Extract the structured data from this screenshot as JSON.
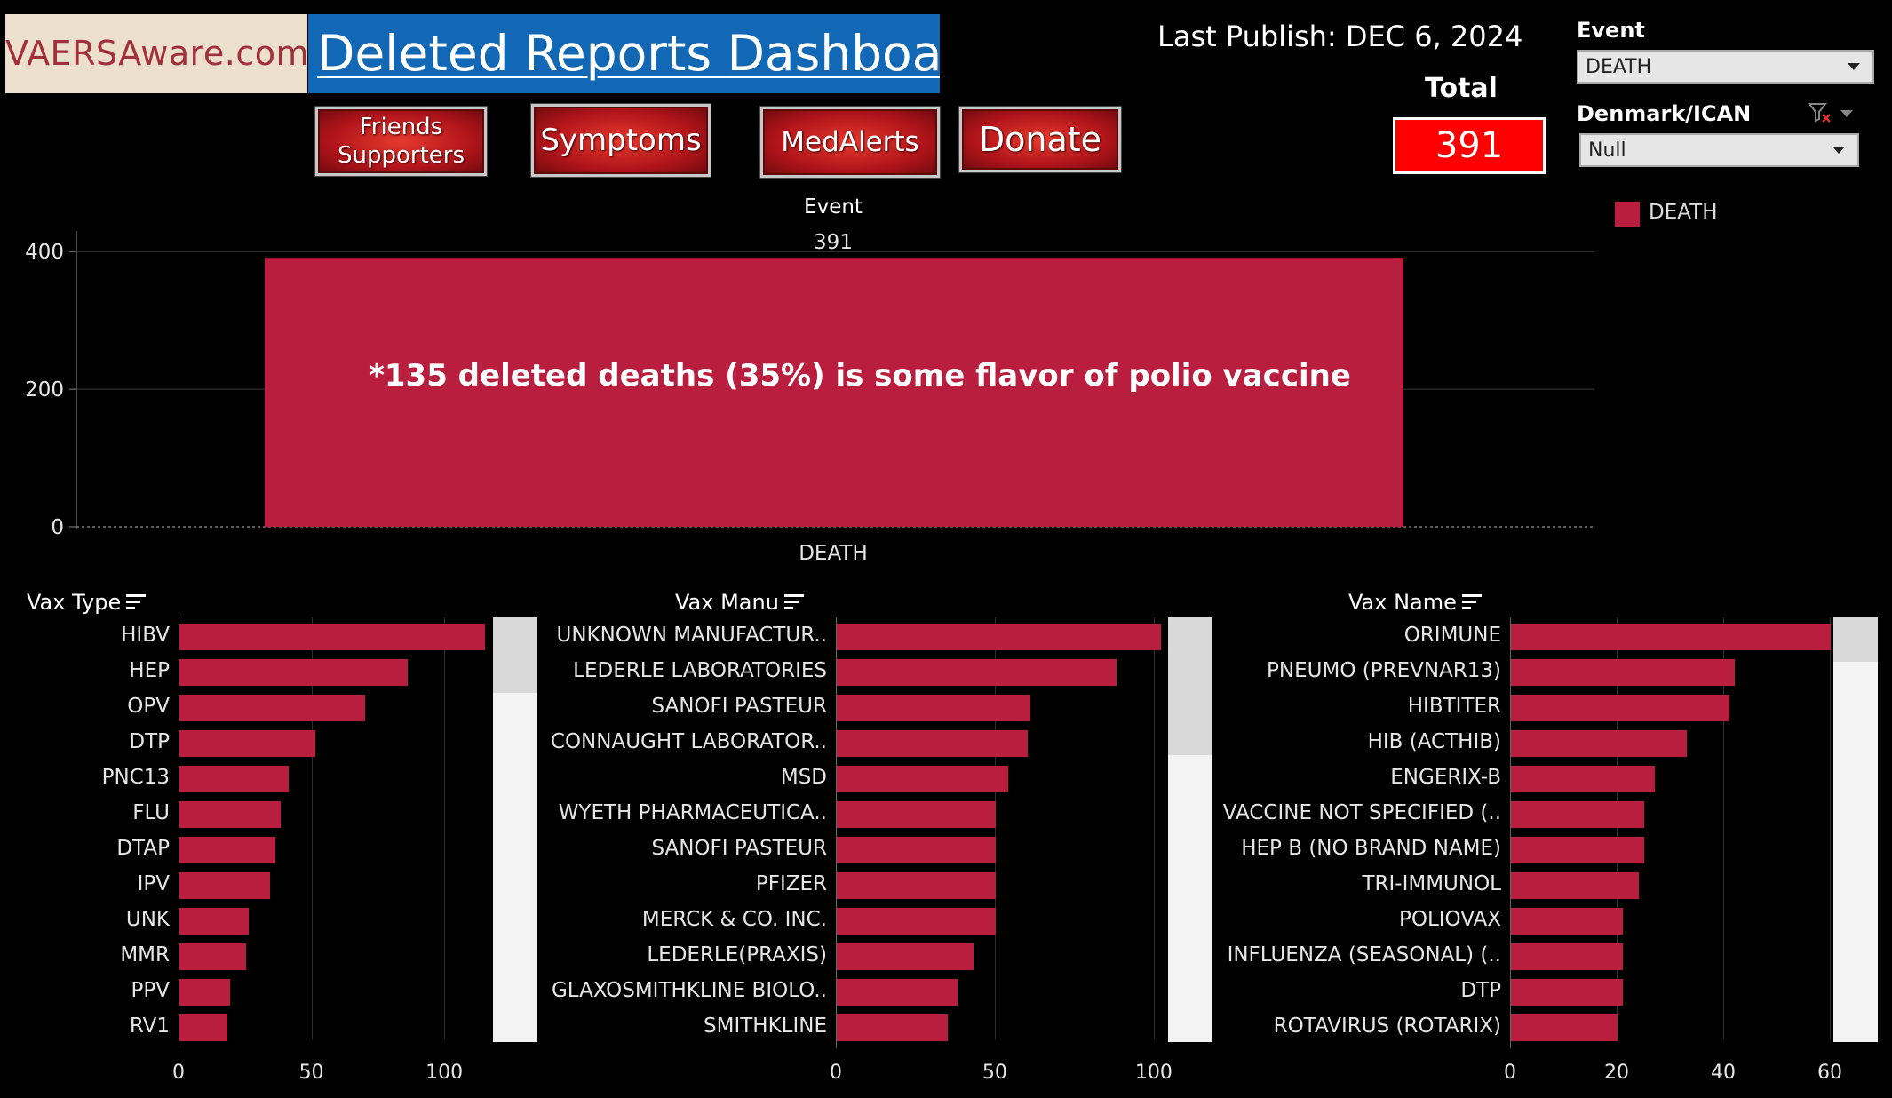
{
  "header": {
    "logo_text": "VAERSAware.com",
    "title_part1": "Deleted Reports ",
    "title_part2": "Dashboard",
    "last_publish": "Last Publish:  DEC 6, 2024",
    "total_label": "Total",
    "total_value": "391"
  },
  "nav": {
    "friends_line1": "Friends",
    "friends_line2": "Supporters",
    "symptoms": "Symptoms",
    "medalerts": "MedAlerts",
    "donate": "Donate"
  },
  "filters": {
    "event_label": "Event",
    "event_value": "DEATH",
    "denmark_label": "Denmark/ICAN",
    "denmark_value": "Null"
  },
  "legend": {
    "label": "DEATH",
    "color": "#b91e3e"
  },
  "colors": {
    "bar": "#b91e3e",
    "total_box": "#ff0000",
    "title_bg": "#1268b4",
    "logo_bg": "#ece0cc"
  },
  "chart_data": [
    {
      "type": "bar",
      "title": "Event",
      "categories": [
        "DEATH"
      ],
      "values": [
        391
      ],
      "data_label": "391",
      "ylim": [
        0,
        430
      ],
      "yticks": [
        0,
        200,
        400
      ],
      "annotation": "*135 deleted deaths (35%) is some flavor of polio vaccine",
      "grid": true
    },
    {
      "type": "bar",
      "orientation": "horizontal",
      "title": "Vax Type",
      "categories": [
        "HIBV",
        "HEP",
        "OPV",
        "DTP",
        "PNC13",
        "FLU",
        "DTAP",
        "IPV",
        "UNK",
        "MMR",
        "PPV",
        "RV1"
      ],
      "values": [
        115,
        86,
        70,
        51,
        41,
        38,
        36,
        34,
        26,
        25,
        19,
        18
      ],
      "xlim": [
        0,
        117
      ],
      "xticks": [
        "0",
        "50",
        "100"
      ]
    },
    {
      "type": "bar",
      "orientation": "horizontal",
      "title": "Vax Manu",
      "categories": [
        "UNKNOWN MANUFACTUR..",
        "LEDERLE LABORATORIES",
        "SANOFI PASTEUR",
        "CONNAUGHT LABORATOR..",
        "MSD",
        "WYETH PHARMACEUTICA..",
        "SANOFI PASTEUR",
        "PFIZER",
        "MERCK & CO. INC.",
        "LEDERLE(PRAXIS)",
        "GLAXOSMITHKLINE BIOLO..",
        "SMITHKLINE"
      ],
      "values": [
        102,
        88,
        61,
        60,
        54,
        50,
        50,
        50,
        50,
        43,
        38,
        35
      ],
      "xlim": [
        0,
        102
      ],
      "xticks": [
        "0",
        "50",
        "100"
      ]
    },
    {
      "type": "bar",
      "orientation": "horizontal",
      "title": "Vax Name",
      "categories": [
        "ORIMUNE",
        "PNEUMO (PREVNAR13)",
        "HIBTITER",
        "HIB (ACTHIB)",
        "ENGERIX-B",
        "VACCINE NOT SPECIFIED (..",
        "HEP B (NO BRAND NAME)",
        "TRI-IMMUNOL",
        "POLIOVAX",
        "INFLUENZA (SEASONAL) (..",
        "DTP",
        "ROTAVIRUS (ROTARIX)"
      ],
      "values": [
        60,
        42,
        41,
        33,
        27,
        25,
        25,
        24,
        21,
        21,
        21,
        20
      ],
      "xlim": [
        0,
        60
      ],
      "xticks": [
        "0",
        "20",
        "40",
        "60"
      ]
    }
  ]
}
